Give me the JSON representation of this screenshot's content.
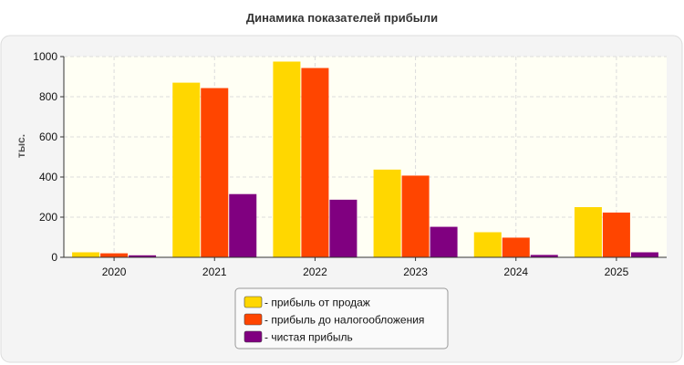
{
  "chart_data": {
    "type": "bar",
    "title": "Динамика показателей прибыли",
    "xlabel": "",
    "ylabel": "тыс.",
    "categories": [
      "2020",
      "2021",
      "2022",
      "2023",
      "2024",
      "2025"
    ],
    "ylim": [
      0,
      1000
    ],
    "yticks": [
      0,
      200,
      400,
      600,
      800,
      1000
    ],
    "grid": true,
    "legend_position": "bottom-center",
    "series": [
      {
        "name": "- прибыль от продаж",
        "color": "#FFD700",
        "values": [
          25,
          870,
          975,
          437,
          125,
          250
        ]
      },
      {
        "name": "- прибыль до налогообложения",
        "color": "#FF4500",
        "values": [
          20,
          843,
          943,
          407,
          98,
          223
        ]
      },
      {
        "name": "- чистая прибыль",
        "color": "#800080",
        "values": [
          10,
          315,
          287,
          152,
          12,
          25
        ]
      }
    ]
  }
}
